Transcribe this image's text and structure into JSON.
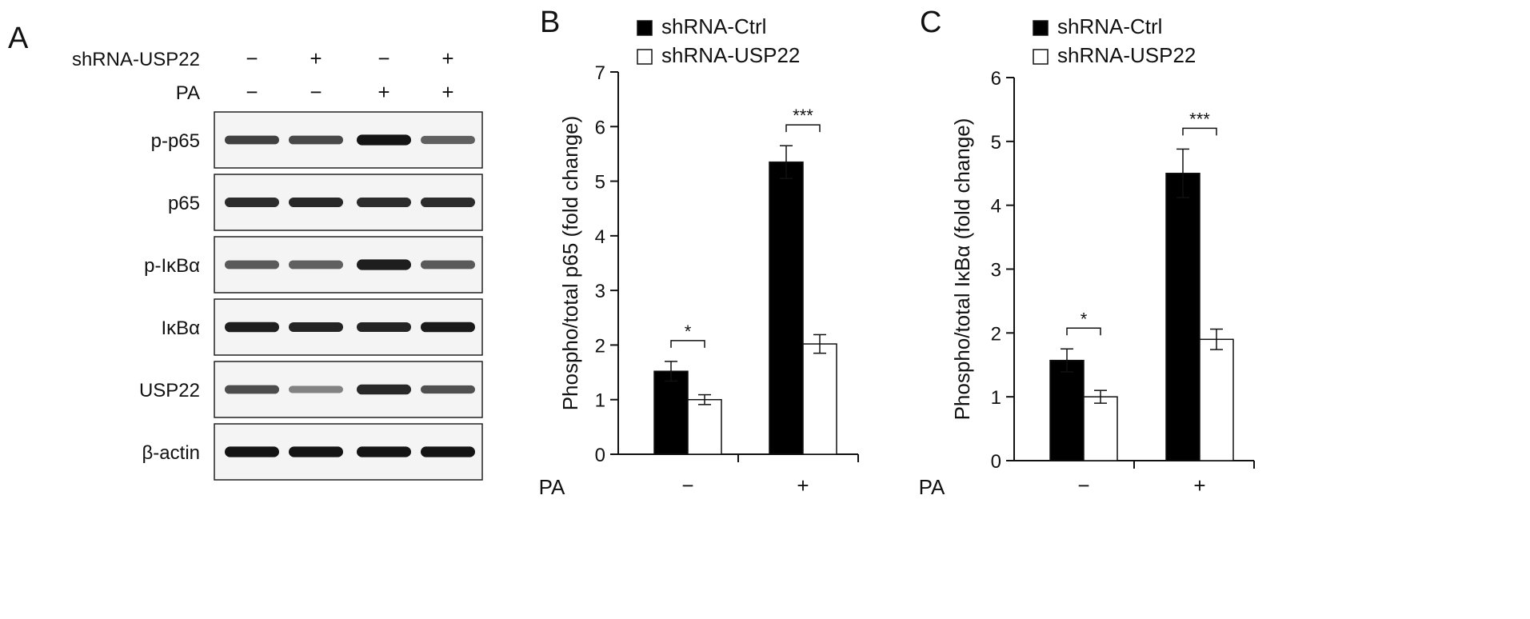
{
  "panels": {
    "a": {
      "letter": "A",
      "conditions": [
        {
          "label": "shRNA-USP22",
          "lanes": [
            "−",
            "+",
            "−",
            "+"
          ]
        },
        {
          "label": "PA",
          "lanes": [
            "−",
            "−",
            "+",
            "+"
          ]
        }
      ],
      "blots": [
        {
          "label": "p-p65",
          "intensity": [
            0.78,
            0.74,
            1.0,
            0.62
          ],
          "thickness": [
            0.9,
            0.9,
            1.1,
            0.85
          ]
        },
        {
          "label": "p65",
          "intensity": [
            0.88,
            0.9,
            0.88,
            0.88
          ],
          "thickness": [
            1.0,
            1.0,
            1.0,
            1.0
          ]
        },
        {
          "label": "p-IκBα",
          "intensity": [
            0.65,
            0.62,
            0.95,
            0.65
          ],
          "thickness": [
            0.9,
            0.9,
            1.1,
            0.9
          ]
        },
        {
          "label": "IκBα",
          "intensity": [
            0.95,
            0.92,
            0.92,
            0.97
          ],
          "thickness": [
            1.05,
            1.0,
            1.0,
            1.05
          ]
        },
        {
          "label": "USP22",
          "intensity": [
            0.72,
            0.45,
            0.9,
            0.7
          ],
          "thickness": [
            0.9,
            0.75,
            1.05,
            0.85
          ]
        },
        {
          "label": "β-actin",
          "intensity": [
            1.0,
            1.0,
            1.0,
            1.0
          ],
          "thickness": [
            1.1,
            1.1,
            1.1,
            1.1
          ]
        }
      ]
    },
    "b": {
      "letter": "B"
    },
    "c": {
      "letter": "C"
    }
  },
  "chart_data": [
    {
      "type": "bar",
      "panel": "B",
      "ylabel": "Phospho/total p65 (fold change)",
      "xlabel": "PA",
      "categories": [
        "−",
        "+"
      ],
      "ylim": [
        0,
        7
      ],
      "yticks": [
        0,
        1,
        2,
        3,
        4,
        5,
        6,
        7
      ],
      "legend_position": "top-left",
      "series": [
        {
          "name": "shRNA-Ctrl",
          "color": "#000000",
          "values": [
            1.52,
            5.35
          ],
          "errors": [
            0.18,
            0.3
          ]
        },
        {
          "name": "shRNA-USP22",
          "color": "#ffffff",
          "values": [
            1.0,
            2.02
          ],
          "errors": [
            0.09,
            0.17
          ]
        }
      ],
      "significance": [
        "*",
        "***"
      ]
    },
    {
      "type": "bar",
      "panel": "C",
      "ylabel": "Phospho/total IκBα (fold change)",
      "xlabel": "PA",
      "categories": [
        "−",
        "+"
      ],
      "ylim": [
        0,
        6
      ],
      "yticks": [
        0,
        1,
        2,
        3,
        4,
        5,
        6
      ],
      "legend_position": "top-left",
      "series": [
        {
          "name": "shRNA-Ctrl",
          "color": "#000000",
          "values": [
            1.57,
            4.5
          ],
          "errors": [
            0.18,
            0.38
          ]
        },
        {
          "name": "shRNA-USP22",
          "color": "#ffffff",
          "values": [
            1.0,
            1.9
          ],
          "errors": [
            0.1,
            0.16
          ]
        }
      ],
      "significance": [
        "*",
        "***"
      ]
    }
  ]
}
